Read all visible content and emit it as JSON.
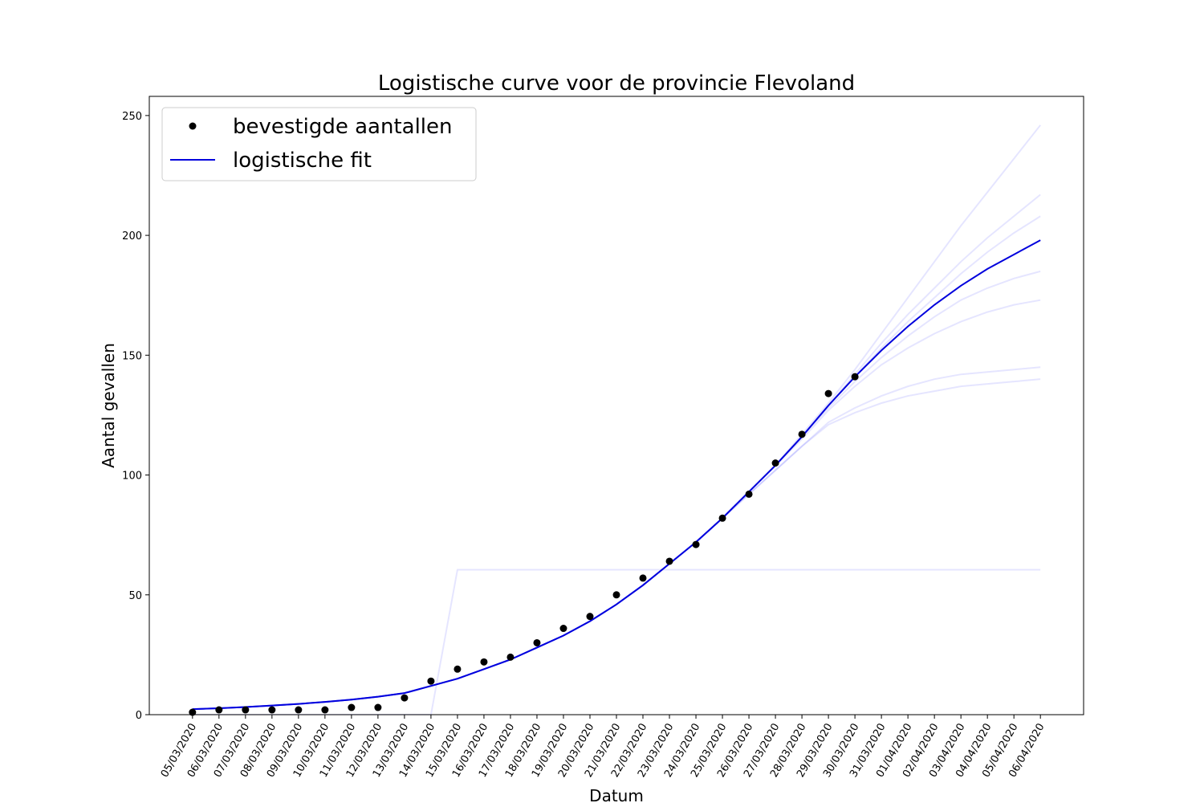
{
  "chart_data": {
    "type": "line",
    "title": "Logistische curve voor de provincie Flevoland",
    "xlabel": "Datum",
    "ylabel": "Aantal gevallen",
    "categories": [
      "05/03/2020",
      "06/03/2020",
      "07/03/2020",
      "08/03/2020",
      "09/03/2020",
      "10/03/2020",
      "11/03/2020",
      "12/03/2020",
      "13/03/2020",
      "14/03/2020",
      "15/03/2020",
      "16/03/2020",
      "17/03/2020",
      "18/03/2020",
      "19/03/2020",
      "20/03/2020",
      "21/03/2020",
      "22/03/2020",
      "23/03/2020",
      "24/03/2020",
      "25/03/2020",
      "26/03/2020",
      "27/03/2020",
      "28/03/2020",
      "29/03/2020",
      "30/03/2020",
      "31/03/2020",
      "01/04/2020",
      "02/04/2020",
      "03/04/2020",
      "04/04/2020",
      "05/04/2020",
      "06/04/2020"
    ],
    "series": [
      {
        "name": "bevestigde aantallen",
        "color": "#000000",
        "marker": "dot",
        "values": [
          1,
          2,
          2,
          2,
          2,
          2,
          3,
          3,
          7,
          14,
          19,
          22,
          24,
          30,
          36,
          41,
          50,
          57,
          64,
          71,
          82,
          92,
          105,
          117,
          134,
          141,
          null,
          null,
          null,
          null,
          null,
          null,
          null
        ]
      },
      {
        "name": "logistische fit",
        "color": "#0000dd",
        "marker": "line",
        "values": [
          2.3,
          2.7,
          3.2,
          3.8,
          4.5,
          5.3,
          6.3,
          7.5,
          9,
          12,
          15,
          19,
          23,
          28,
          33,
          39,
          46,
          54,
          63,
          72,
          82,
          93,
          104,
          116,
          129,
          141,
          152,
          162,
          171,
          179,
          186,
          192,
          198
        ]
      }
    ],
    "bootstrap_fits": {
      "color": "#0000ff",
      "opacity": 0.1,
      "values": [
        [
          2.3,
          2.7,
          3.2,
          3.8,
          4.5,
          5.3,
          6.3,
          7.5,
          9,
          12,
          15,
          19,
          23,
          28,
          33,
          39,
          46,
          54,
          63,
          72,
          82,
          93,
          104,
          117,
          130,
          144,
          159,
          174,
          189,
          204,
          218,
          232,
          246
        ],
        [
          2.3,
          2.7,
          3.2,
          3.8,
          4.5,
          5.3,
          6.3,
          7.5,
          9,
          12,
          15,
          19,
          23,
          28,
          33,
          39,
          46,
          54,
          63,
          72,
          82,
          93,
          104,
          116,
          129,
          142,
          155,
          167,
          178,
          189,
          199,
          208,
          217
        ],
        [
          2.3,
          2.7,
          3.2,
          3.8,
          4.5,
          5.3,
          6.3,
          7.5,
          9,
          12,
          15,
          19,
          23,
          28,
          33,
          39,
          46,
          54,
          63,
          72,
          82,
          93,
          104,
          116,
          129,
          141,
          153,
          164,
          174,
          184,
          193,
          201,
          208
        ],
        [
          2.3,
          2.7,
          3.2,
          3.8,
          4.5,
          5.3,
          6.3,
          7.5,
          9,
          12,
          15,
          19,
          23,
          28,
          33,
          39,
          46,
          54,
          63,
          72,
          82,
          93,
          104,
          116,
          128,
          139,
          149,
          158,
          166,
          173,
          178,
          182,
          185
        ],
        [
          2.3,
          2.7,
          3.2,
          3.8,
          4.5,
          5.3,
          6.3,
          7.5,
          9,
          12,
          15,
          19,
          23,
          28,
          33,
          39,
          46,
          54,
          63,
          72,
          82,
          93,
          104,
          115,
          127,
          137,
          146,
          153,
          159,
          164,
          168,
          171,
          173
        ],
        [
          2.3,
          2.7,
          3.2,
          3.8,
          4.5,
          5.3,
          6.3,
          7.5,
          9,
          12,
          15,
          19,
          23,
          28,
          33,
          39,
          46,
          54,
          63,
          72,
          82,
          92,
          102,
          112,
          122,
          128,
          133,
          137,
          140,
          142,
          143,
          144,
          145
        ],
        [
          2.3,
          2.7,
          3.2,
          3.8,
          4.5,
          5.3,
          6.3,
          7.5,
          9,
          12,
          15,
          19,
          23,
          28,
          33,
          39,
          46,
          54,
          63,
          72,
          82,
          92,
          102,
          112,
          121,
          126,
          130,
          133,
          135,
          137,
          138,
          139,
          140
        ],
        [
          0,
          0,
          0,
          0,
          0,
          0,
          0,
          0,
          0,
          0,
          60.5,
          60.5,
          60.5,
          60.5,
          60.5,
          60.5,
          60.5,
          60.5,
          60.5,
          60.5,
          60.5,
          60.5,
          60.5,
          60.5,
          60.5,
          60.5,
          60.5,
          60.5,
          60.5,
          60.5,
          60.5,
          60.5,
          60.5
        ]
      ]
    },
    "ylim": [
      0,
      258
    ],
    "yticks": [
      0,
      50,
      100,
      150,
      200,
      250
    ],
    "legend_loc": "upper left"
  }
}
